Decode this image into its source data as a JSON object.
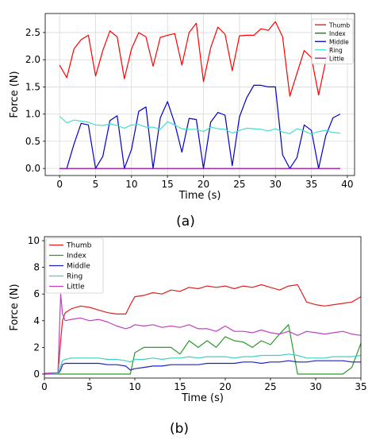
{
  "figure": {
    "caption_a": "(a)",
    "caption_b": "(b)"
  },
  "chart_data": [
    {
      "type": "line",
      "xlabel": "Time (s)",
      "ylabel": "Force (N)",
      "xlim": [
        -2,
        41
      ],
      "ylim": [
        -0.13,
        2.85
      ],
      "xticks": [
        "0",
        "5",
        "10",
        "15",
        "20",
        "25",
        "30",
        "35",
        "40"
      ],
      "yticks": [
        "0.0",
        "0.5",
        "1.0",
        "1.5",
        "2.0",
        "2.5"
      ],
      "grid": true,
      "legend_position": "top-right",
      "x": [
        0,
        1,
        2,
        3,
        4,
        5,
        6,
        7,
        8,
        9,
        10,
        11,
        12,
        13,
        14,
        15,
        16,
        17,
        18,
        19,
        20,
        21,
        22,
        23,
        24,
        25,
        26,
        27,
        28,
        29,
        30,
        31,
        32,
        33,
        34,
        35,
        36,
        37,
        38,
        39
      ],
      "series": [
        {
          "name": "Thumb",
          "color": "#ff0000",
          "values": [
            1.9,
            1.67,
            2.2,
            2.37,
            2.45,
            1.7,
            2.17,
            2.53,
            2.42,
            1.65,
            2.2,
            2.5,
            2.42,
            1.88,
            2.41,
            2.45,
            2.48,
            1.9,
            2.5,
            2.67,
            1.6,
            2.22,
            2.6,
            2.47,
            1.8,
            2.44,
            2.45,
            2.45,
            2.57,
            2.54,
            2.7,
            2.42,
            1.33,
            1.75,
            2.17,
            2.04,
            1.35,
            1.98,
            2.27,
            2.25
          ]
        },
        {
          "name": "Index",
          "color": "#008000",
          "values": [
            0,
            0,
            0,
            0,
            0,
            0,
            0,
            0,
            0,
            0,
            0,
            0,
            0,
            0,
            0,
            0,
            0,
            0,
            0,
            0,
            0,
            0,
            0,
            0,
            0,
            0,
            0,
            0,
            0,
            0,
            0,
            0,
            0,
            0,
            0,
            0,
            0,
            0,
            0,
            0
          ]
        },
        {
          "name": "Middle",
          "color": "#0000cc",
          "values": [
            0,
            0,
            0.45,
            0.83,
            0.8,
            0,
            0.22,
            0.88,
            0.97,
            0,
            0.35,
            1.05,
            1.13,
            0,
            0.93,
            1.23,
            0.83,
            0.3,
            0.92,
            0.9,
            0,
            0.85,
            1.03,
            0.98,
            0.05,
            0.95,
            1.3,
            1.53,
            1.53,
            1.5,
            1.5,
            0.25,
            0,
            0.2,
            0.8,
            0.7,
            0,
            0.6,
            0.93,
            1.0
          ]
        },
        {
          "name": "Ring",
          "color": "#40e0d0",
          "values": [
            0.96,
            0.84,
            0.89,
            0.87,
            0.85,
            0.8,
            0.79,
            0.82,
            0.79,
            0.74,
            0.8,
            0.81,
            0.76,
            0.76,
            0.72,
            0.86,
            0.8,
            0.73,
            0.72,
            0.72,
            0.68,
            0.76,
            0.73,
            0.72,
            0.65,
            0.7,
            0.74,
            0.73,
            0.72,
            0.69,
            0.73,
            0.67,
            0.64,
            0.73,
            0.69,
            0.63,
            0.68,
            0.7,
            0.66,
            0.65
          ]
        },
        {
          "name": "Little",
          "color": "#c000c0",
          "values": [
            0,
            0,
            0,
            0,
            0,
            0,
            0,
            0,
            0,
            0,
            0,
            0,
            0,
            0,
            0,
            0,
            0,
            0,
            0,
            0,
            0,
            0,
            0,
            0,
            0,
            0,
            0,
            0,
            0,
            0,
            0,
            0,
            0,
            0,
            0,
            0,
            0,
            0,
            0,
            0
          ]
        }
      ]
    },
    {
      "type": "line",
      "xlabel": "Time (s)",
      "ylabel": "Force (N)",
      "xlim": [
        0,
        35
      ],
      "ylim": [
        -0.3,
        10.3
      ],
      "xticks": [
        "0",
        "5",
        "10",
        "15",
        "20",
        "25",
        "30",
        "35"
      ],
      "yticks": [
        "0",
        "2",
        "4",
        "6",
        "8",
        "10"
      ],
      "grid": false,
      "legend_position": "top-left",
      "x": [
        0,
        1.5,
        1.8,
        2,
        2.3,
        3,
        4,
        5,
        6,
        7,
        8,
        9,
        9.5,
        10,
        11,
        12,
        13,
        14,
        15,
        16,
        17,
        18,
        19,
        20,
        21,
        22,
        23,
        24,
        25,
        26,
        27,
        28,
        29,
        30,
        31,
        32,
        33,
        34,
        35
      ],
      "series": [
        {
          "name": "Thumb",
          "color": "#e02020",
          "values": [
            0.05,
            0.1,
            2.5,
            4,
            4.6,
            4.9,
            5.1,
            5.0,
            4.8,
            4.6,
            4.5,
            4.5,
            5.2,
            5.8,
            5.9,
            6.1,
            6.0,
            6.3,
            6.2,
            6.5,
            6.4,
            6.6,
            6.5,
            6.6,
            6.4,
            6.6,
            6.5,
            6.7,
            6.5,
            6.3,
            6.6,
            6.7,
            5.4,
            5.2,
            5.1,
            5.2,
            5.3,
            5.4,
            5.8
          ]
        },
        {
          "name": "Index",
          "color": "#2a9a2a",
          "values": [
            0,
            0,
            0,
            0,
            0,
            0,
            0,
            0,
            0,
            0,
            0,
            0,
            0,
            1.6,
            2.0,
            2.0,
            2.0,
            2.0,
            1.5,
            2.5,
            2.0,
            2.5,
            2.0,
            2.8,
            2.5,
            2.4,
            2.0,
            2.5,
            2.2,
            3.0,
            3.7,
            0,
            0,
            0,
            0,
            0,
            0,
            0.5,
            2.3
          ]
        },
        {
          "name": "Middle",
          "color": "#2020c0",
          "values": [
            0,
            0,
            0.3,
            0.7,
            0.8,
            0.8,
            0.8,
            0.8,
            0.8,
            0.7,
            0.7,
            0.6,
            0.3,
            0.4,
            0.5,
            0.6,
            0.6,
            0.7,
            0.7,
            0.7,
            0.7,
            0.8,
            0.8,
            0.8,
            0.8,
            0.9,
            0.9,
            0.8,
            0.9,
            0.9,
            1.0,
            0.9,
            0.9,
            1.0,
            1.0,
            1.0,
            1.0,
            0.9,
            0.9
          ]
        },
        {
          "name": "Ring",
          "color": "#40d0c0",
          "values": [
            0,
            0,
            0.6,
            1.0,
            1.1,
            1.2,
            1.2,
            1.2,
            1.2,
            1.1,
            1.1,
            1.0,
            0.9,
            1.1,
            1.1,
            1.2,
            1.1,
            1.2,
            1.2,
            1.3,
            1.2,
            1.3,
            1.3,
            1.3,
            1.2,
            1.3,
            1.3,
            1.4,
            1.4,
            1.4,
            1.5,
            1.4,
            1.2,
            1.2,
            1.2,
            1.3,
            1.3,
            1.3,
            1.4
          ]
        },
        {
          "name": "Little",
          "color": "#c040c0",
          "values": [
            0,
            0.1,
            6.0,
            4.5,
            4.0,
            4.1,
            4.2,
            4.0,
            4.1,
            3.9,
            3.6,
            3.4,
            3.5,
            3.7,
            3.6,
            3.7,
            3.5,
            3.6,
            3.5,
            3.7,
            3.4,
            3.4,
            3.2,
            3.6,
            3.2,
            3.2,
            3.1,
            3.3,
            3.1,
            3.0,
            3.2,
            2.9,
            3.2,
            3.1,
            3.0,
            3.1,
            3.2,
            3.0,
            2.9
          ]
        }
      ]
    }
  ]
}
